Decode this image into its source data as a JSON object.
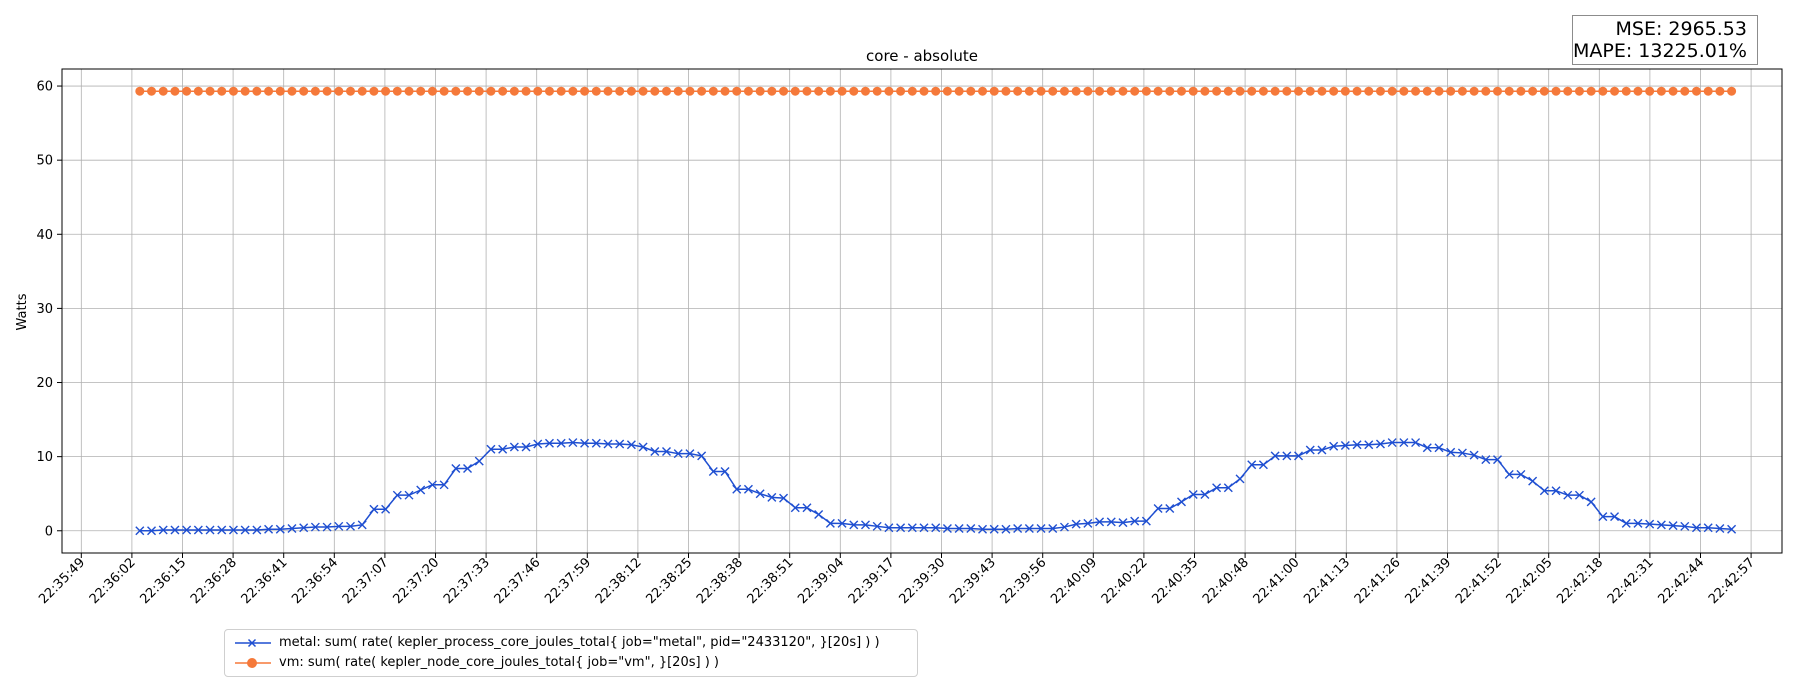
{
  "chart_data": {
    "type": "line",
    "title": "core - absolute",
    "ylabel": "Watts",
    "xlabel": "",
    "ylim": [
      -3,
      62.3
    ],
    "yticks": [
      0,
      10,
      20,
      30,
      40,
      50,
      60
    ],
    "grid": true,
    "legend_position": "bottom-left",
    "x_tick_labels": [
      "22:35:49",
      "22:36:02",
      "22:36:15",
      "22:36:28",
      "22:36:41",
      "22:36:54",
      "22:37:07",
      "22:37:20",
      "22:37:33",
      "22:37:46",
      "22:37:59",
      "22:38:12",
      "22:38:25",
      "22:38:38",
      "22:38:51",
      "22:39:04",
      "22:39:17",
      "22:39:30",
      "22:39:43",
      "22:39:56",
      "22:40:09",
      "22:40:22",
      "22:40:35",
      "22:40:48",
      "22:41:00",
      "22:41:13",
      "22:41:26",
      "22:41:39",
      "22:41:52",
      "22:42:05",
      "22:42:18",
      "22:42:31",
      "22:42:44",
      "22:42:57"
    ],
    "x_start": "22:36:04",
    "x_step_seconds": 3,
    "series": [
      {
        "name": "metal: sum( rate( kepler_process_core_joules_total{ job=\"metal\", pid=\"2433120\", }[20s] ) )",
        "color": "#1f4fd1",
        "marker": "x",
        "values": [
          0.0,
          0.0,
          0.1,
          0.1,
          0.1,
          0.1,
          0.1,
          0.1,
          0.1,
          0.1,
          0.1,
          0.2,
          0.2,
          0.3,
          0.4,
          0.5,
          0.5,
          0.6,
          0.6,
          0.8,
          2.9,
          2.9,
          4.8,
          4.8,
          5.5,
          6.2,
          6.2,
          8.4,
          8.4,
          9.4,
          11.0,
          11.0,
          11.3,
          11.3,
          11.7,
          11.8,
          11.8,
          11.9,
          11.8,
          11.8,
          11.7,
          11.7,
          11.6,
          11.3,
          10.7,
          10.7,
          10.4,
          10.4,
          10.1,
          8.0,
          8.0,
          5.6,
          5.6,
          5.0,
          4.5,
          4.4,
          3.1,
          3.1,
          2.2,
          1.0,
          1.0,
          0.8,
          0.8,
          0.6,
          0.4,
          0.4,
          0.4,
          0.4,
          0.4,
          0.3,
          0.3,
          0.3,
          0.2,
          0.2,
          0.2,
          0.3,
          0.3,
          0.3,
          0.3,
          0.5,
          0.9,
          1.0,
          1.2,
          1.2,
          1.1,
          1.3,
          1.3,
          3.0,
          3.0,
          3.9,
          4.9,
          4.9,
          5.8,
          5.8,
          7.0,
          8.9,
          8.9,
          10.1,
          10.1,
          10.1,
          10.9,
          10.9,
          11.4,
          11.5,
          11.6,
          11.6,
          11.7,
          11.9,
          11.9,
          11.9,
          11.2,
          11.2,
          10.6,
          10.5,
          10.2,
          9.6,
          9.6,
          7.6,
          7.6,
          6.7,
          5.4,
          5.4,
          4.8,
          4.8,
          3.9,
          1.9,
          1.9,
          1.0,
          1.0,
          0.9,
          0.8,
          0.7,
          0.6,
          0.4,
          0.4,
          0.3,
          0.2
        ]
      },
      {
        "name": "vm: sum( rate( kepler_node_core_joules_total{ job=\"vm\", }[20s] ) )",
        "color": "#f5793a",
        "marker": "o",
        "constant_value": 59.3,
        "point_count": 137
      }
    ],
    "annotation": {
      "mse": "MSE: 2965.53",
      "mape": "MAPE: 13225.01%"
    }
  }
}
